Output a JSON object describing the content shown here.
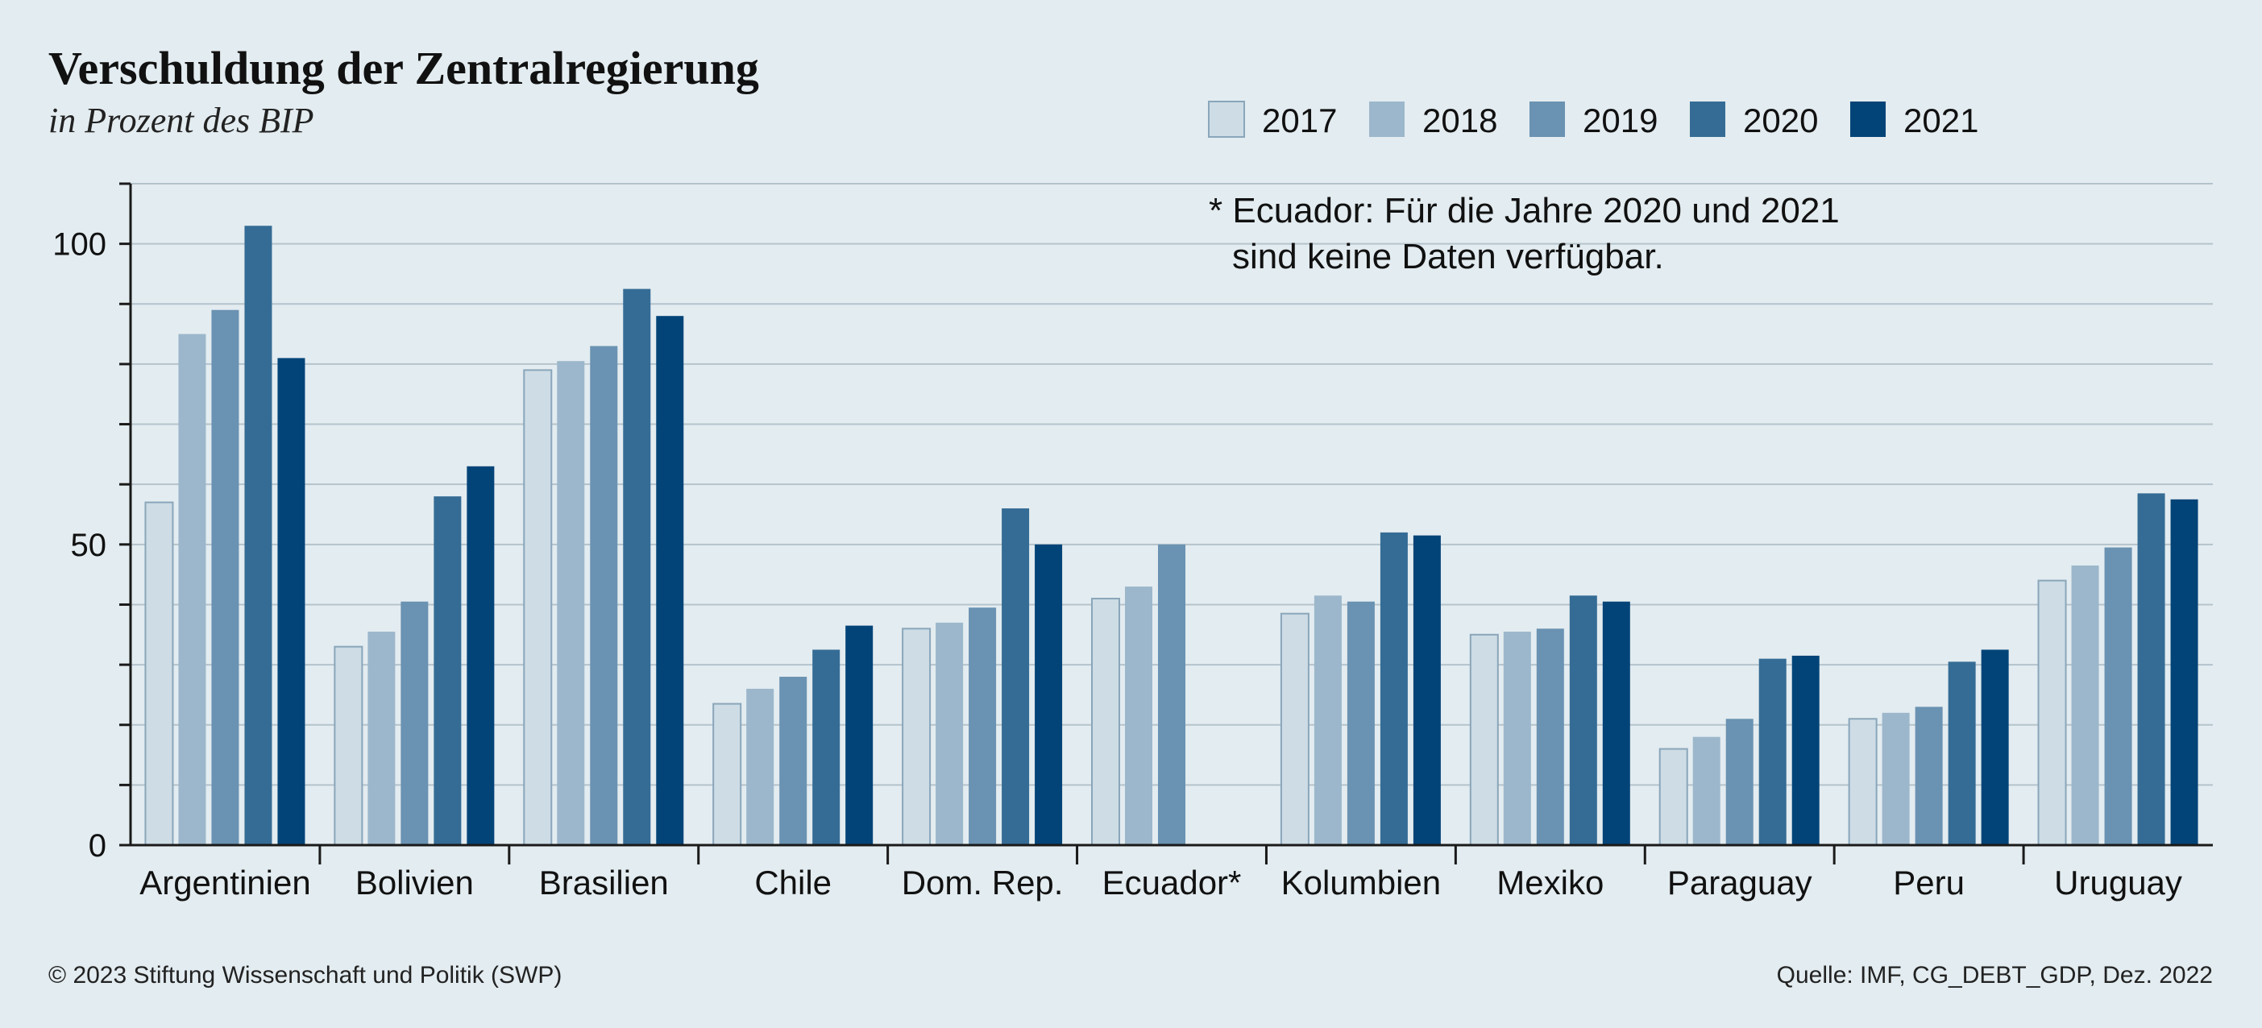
{
  "chart_data": {
    "type": "bar",
    "title": "Verschuldung der Zentralregierung",
    "subtitle": "in Prozent des BIP",
    "xlabel": "",
    "ylabel": "",
    "ylim": [
      0,
      110
    ],
    "yticks": [
      0,
      50,
      100
    ],
    "grid": true,
    "legend_position": "top-right",
    "categories": [
      "Argentinien",
      "Bolivien",
      "Brasilien",
      "Chile",
      "Dom. Rep.",
      "Ecuador*",
      "Kolumbien",
      "Mexiko",
      "Paraguay",
      "Peru",
      "Uruguay"
    ],
    "series": [
      {
        "name": "2017",
        "color": "#cddce5",
        "values": [
          57,
          33,
          79,
          23.5,
          36,
          41,
          38.5,
          35,
          16,
          21,
          44
        ]
      },
      {
        "name": "2018",
        "color": "#9cb7cb",
        "values": [
          85,
          35.5,
          80.5,
          26,
          37,
          43,
          41.5,
          35.5,
          18,
          22,
          46.5
        ]
      },
      {
        "name": "2019",
        "color": "#6a92b2",
        "values": [
          89,
          40.5,
          83,
          28,
          39.5,
          50,
          40.5,
          36,
          21,
          23,
          49.5
        ]
      },
      {
        "name": "2020",
        "color": "#356c95",
        "values": [
          103,
          58,
          92.5,
          32.5,
          56,
          null,
          52,
          41.5,
          31,
          30.5,
          58.5
        ]
      },
      {
        "name": "2021",
        "color": "#034478",
        "values": [
          81,
          63,
          88,
          36.5,
          50,
          null,
          51.5,
          40.5,
          31.5,
          32.5,
          57.5
        ]
      }
    ],
    "note": [
      "* Ecuador: Für die Jahre 2020 und 2021",
      "sind keine Daten verfügbar."
    ]
  },
  "footer": {
    "copyright": "© 2023 Stiftung Wissenschaft und Politik (SWP)",
    "source": "Quelle: IMF, CG_DEBT_GDP, Dez. 2022"
  }
}
